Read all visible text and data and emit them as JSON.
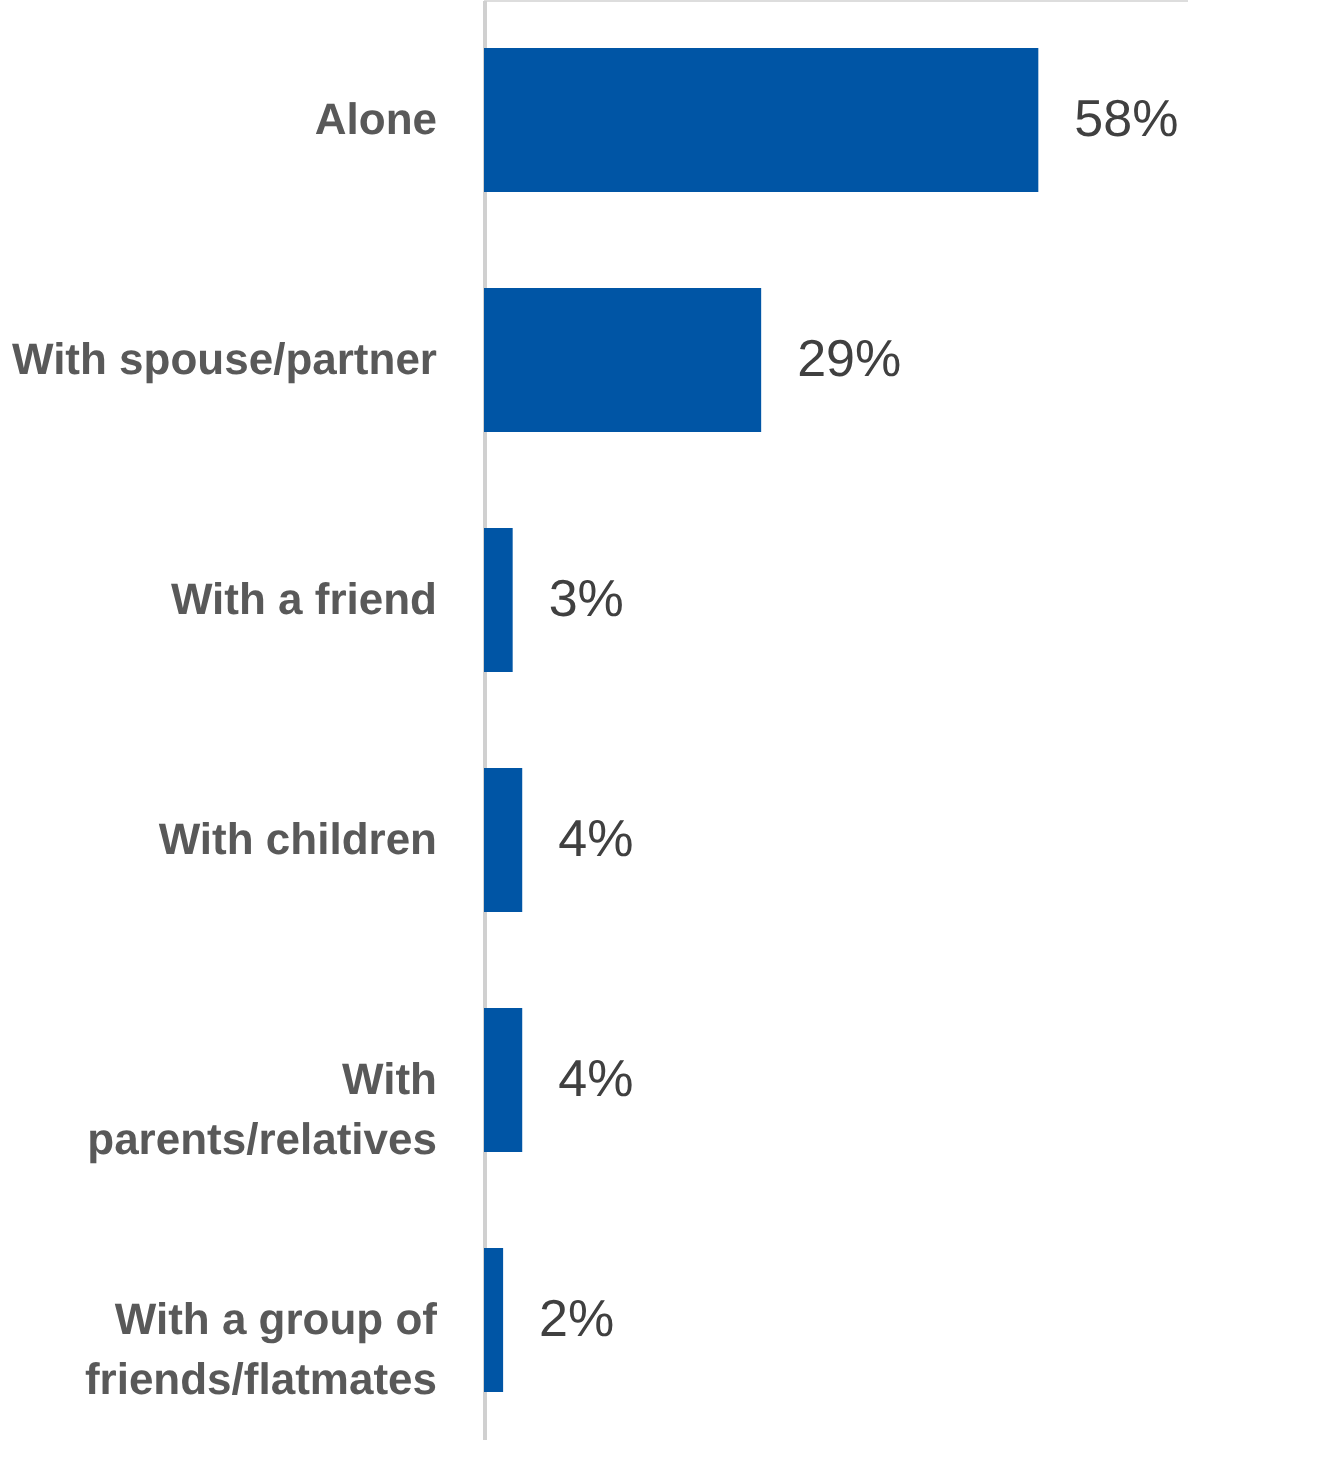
{
  "chart_data": {
    "type": "bar",
    "orientation": "horizontal",
    "categories": [
      "Alone",
      "With spouse/partner",
      "With a friend",
      "With children",
      "With\nparents/relatives",
      "With a group of\nfriends/flatmates"
    ],
    "values": [
      58,
      29,
      3,
      4,
      4,
      2
    ],
    "value_labels": [
      "58%",
      "29%",
      "3%",
      "4%",
      "4%",
      "2%"
    ],
    "color": "#0055a5",
    "tick_labels": "y"
  }
}
